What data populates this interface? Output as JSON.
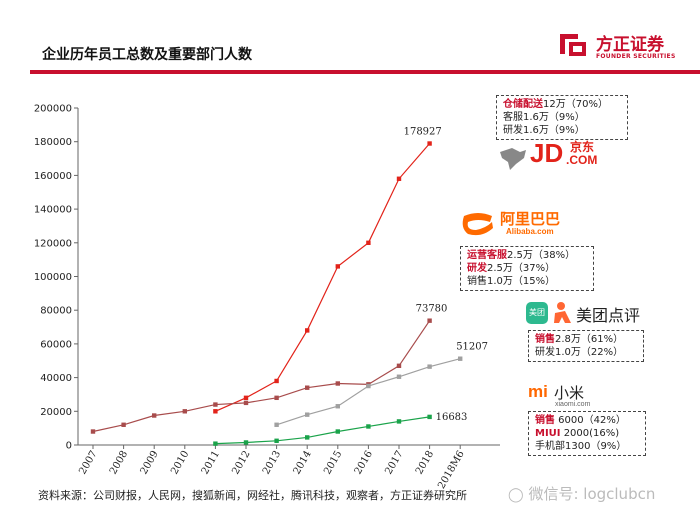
{
  "title": "企业历年员工总数及重要部门人数",
  "logo": {
    "cn": "方正证券",
    "en": "FOUNDER SECURITIES"
  },
  "source": "资料来源：公司财报，人民网，搜狐新闻，网经社，腾讯科技，观察者，方正证券研究所",
  "watermark": "微信号: logclubcn",
  "brands": {
    "jd_text": "JD",
    "jd_cn": "京东",
    "jd_com": ".COM",
    "alibaba_cn": "阿里巴巴",
    "alibaba_en": "Alibaba.com",
    "meituan_icon": "美团",
    "meituan_cn": "美团点评",
    "xiaomi_mi": "mi",
    "xiaomi_cn": "小米",
    "xiaomi_en": "xiaomi.com"
  },
  "notes": {
    "jd": [
      {
        "hl": "仓储配送",
        "rest": "12万（70%）"
      },
      {
        "hl": "",
        "rest": "客服1.6万（9%）"
      },
      {
        "hl": "",
        "rest": "研发1.6万（9%）"
      }
    ],
    "alibaba": [
      {
        "hl": "运营客服",
        "rest": "2.5万（38%）"
      },
      {
        "hl": "研发",
        "rest": "2.5万（37%）"
      },
      {
        "hl": "",
        "rest": "销售1.0万（15%）"
      }
    ],
    "meituan": [
      {
        "hl": "销售",
        "rest": "2.8万（61%）"
      },
      {
        "hl": "",
        "rest": "研发1.0万（22%）"
      }
    ],
    "xiaomi": [
      {
        "hl": "销售",
        "rest": " 6000（42%）"
      },
      {
        "hl": "MIUI",
        "rest": " 2000(16%)"
      },
      {
        "hl": "",
        "rest": "手机部1300（9%）"
      }
    ]
  },
  "colors": {
    "brand_red": "#c8102e",
    "jd": "#e2231a",
    "alibaba": "#a84c4c",
    "meituan": "#a0a0a0",
    "xiaomi": "#1aa34a"
  },
  "chart_data": {
    "type": "line",
    "categories": [
      "2007",
      "2008",
      "2009",
      "2010",
      "2011",
      "2012",
      "2013",
      "2014",
      "2015",
      "2016",
      "2017",
      "2018",
      "2018M6"
    ],
    "ylim": [
      0,
      200000
    ],
    "yticks": [
      0,
      20000,
      40000,
      60000,
      80000,
      100000,
      120000,
      140000,
      160000,
      180000,
      200000
    ],
    "grid": false,
    "series": [
      {
        "key": "jd",
        "values": [
          null,
          null,
          null,
          null,
          20000,
          28000,
          38000,
          68000,
          106000,
          120000,
          158000,
          178927,
          null
        ],
        "end_label": "178927"
      },
      {
        "key": "alibaba",
        "values": [
          8000,
          12000,
          17500,
          20000,
          24000,
          25000,
          28000,
          34000,
          36500,
          36000,
          47000,
          73780,
          null
        ],
        "end_label": "73780"
      },
      {
        "key": "meituan",
        "values": [
          null,
          null,
          null,
          null,
          null,
          null,
          12000,
          18000,
          23000,
          35000,
          40500,
          46500,
          51207
        ],
        "end_label": "51207"
      },
      {
        "key": "xiaomi",
        "values": [
          null,
          null,
          null,
          null,
          800,
          1500,
          2500,
          4500,
          8000,
          11000,
          14000,
          16683,
          null
        ],
        "end_label": "16683"
      }
    ]
  }
}
